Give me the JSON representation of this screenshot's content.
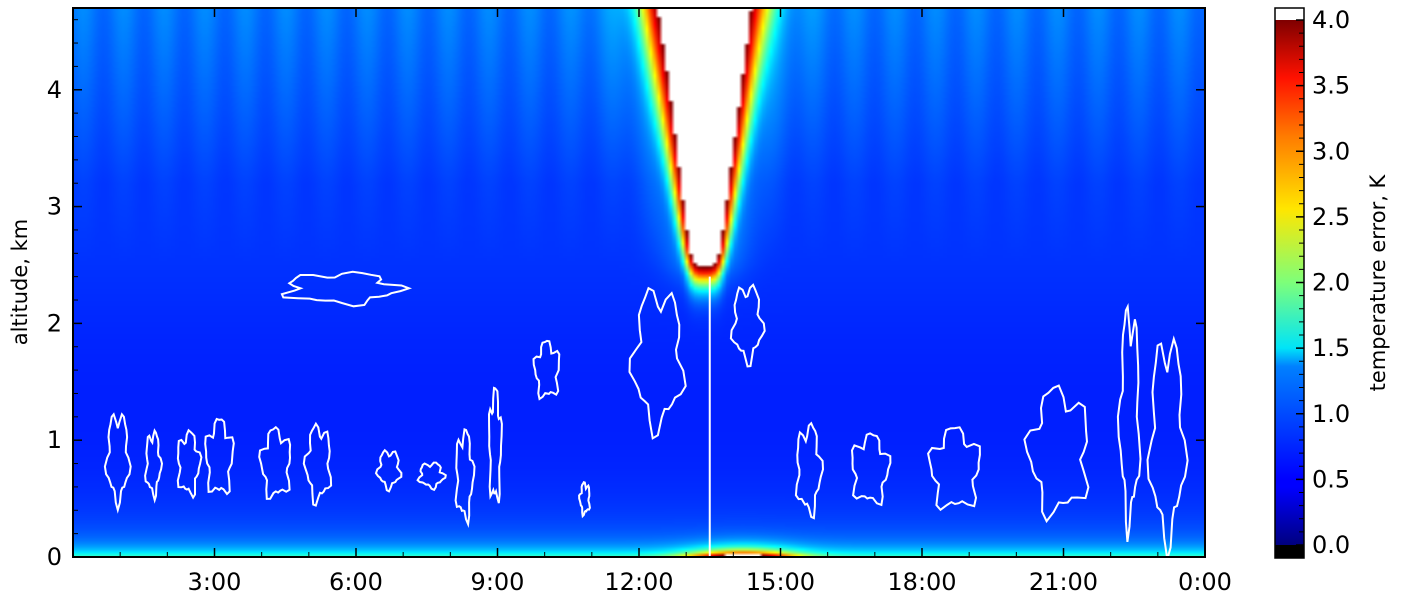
{
  "chart_data": {
    "type": "heatmap",
    "title": "",
    "xlabel": "",
    "ylabel": "altitude, km",
    "x_unit": "hours of day",
    "xlim": [
      0,
      24
    ],
    "ylim": [
      0,
      4.7
    ],
    "x_ticks": [
      {
        "value": 3,
        "label": "3:00"
      },
      {
        "value": 6,
        "label": "6:00"
      },
      {
        "value": 9,
        "label": "9:00"
      },
      {
        "value": 12,
        "label": "12:00"
      },
      {
        "value": 15,
        "label": "15:00"
      },
      {
        "value": 18,
        "label": "18:00"
      },
      {
        "value": 21,
        "label": "21:00"
      },
      {
        "value": 24,
        "label": "0:00"
      }
    ],
    "y_ticks": [
      {
        "value": 0,
        "label": "0"
      },
      {
        "value": 1,
        "label": "1"
      },
      {
        "value": 2,
        "label": "2"
      },
      {
        "value": 3,
        "label": "3"
      },
      {
        "value": 4,
        "label": "4"
      }
    ],
    "colorbar": {
      "label": "temperature error, K",
      "range": [
        0,
        4.0
      ],
      "extend": "both",
      "colormap": "jet",
      "ticks": [
        {
          "value": 0.0,
          "label": "0.0"
        },
        {
          "value": 0.5,
          "label": "0.5"
        },
        {
          "value": 1.0,
          "label": "1.0"
        },
        {
          "value": 1.5,
          "label": "1.5"
        },
        {
          "value": 2.0,
          "label": "2.0"
        },
        {
          "value": 2.5,
          "label": "2.5"
        },
        {
          "value": 3.0,
          "label": "3.0"
        },
        {
          "value": 3.5,
          "label": "3.5"
        },
        {
          "value": 4.0,
          "label": "4.0"
        }
      ]
    },
    "field_description": {
      "background_value": 0.35,
      "background_minimum_altitude": 1.2,
      "background_minimum_value": 0.2,
      "surface_layer_value": 1.0,
      "daytime_plume": {
        "x_center": 13.4,
        "bottom_altitude": 2.4,
        "halfwidth_at_bottom": 0.35,
        "halfwidth_at_top": 1.25,
        "peak_value": 4.5
      },
      "surface_hotspot": {
        "x_center": 14.2,
        "value": 3.8
      }
    },
    "contours": {
      "color": "#ffffff",
      "shapes": [
        {
          "x": 0.95,
          "y": 0.85,
          "w": 0.45,
          "h": 0.7
        },
        {
          "x": 1.7,
          "y": 0.8,
          "w": 0.3,
          "h": 0.5
        },
        {
          "x": 2.45,
          "y": 0.8,
          "w": 0.45,
          "h": 0.5
        },
        {
          "x": 3.1,
          "y": 0.85,
          "w": 0.55,
          "h": 0.6
        },
        {
          "x": 4.3,
          "y": 0.8,
          "w": 0.6,
          "h": 0.55
        },
        {
          "x": 5.2,
          "y": 0.8,
          "w": 0.5,
          "h": 0.6
        },
        {
          "x": 6.7,
          "y": 0.75,
          "w": 0.45,
          "h": 0.3
        },
        {
          "x": 7.6,
          "y": 0.7,
          "w": 0.5,
          "h": 0.2
        },
        {
          "x": 8.3,
          "y": 0.7,
          "w": 0.35,
          "h": 0.7
        },
        {
          "x": 8.95,
          "y": 0.95,
          "w": 0.25,
          "h": 0.9
        },
        {
          "x": 10.05,
          "y": 1.6,
          "w": 0.5,
          "h": 0.45
        },
        {
          "x": 10.85,
          "y": 0.5,
          "w": 0.2,
          "h": 0.25
        },
        {
          "x": 12.4,
          "y": 1.7,
          "w": 1.0,
          "h": 1.1
        },
        {
          "x": 14.3,
          "y": 2.0,
          "w": 0.6,
          "h": 0.6
        },
        {
          "x": 15.6,
          "y": 0.75,
          "w": 0.5,
          "h": 0.7
        },
        {
          "x": 16.9,
          "y": 0.75,
          "w": 0.75,
          "h": 0.55
        },
        {
          "x": 18.7,
          "y": 0.75,
          "w": 1.0,
          "h": 0.65
        },
        {
          "x": 20.9,
          "y": 0.9,
          "w": 1.2,
          "h": 1.0
        },
        {
          "x": 22.4,
          "y": 1.2,
          "w": 0.4,
          "h": 1.7
        },
        {
          "x": 23.2,
          "y": 1.0,
          "w": 0.7,
          "h": 1.6
        },
        {
          "x": 5.7,
          "y": 2.3,
          "w": 2.3,
          "h": 0.25
        }
      ]
    }
  }
}
